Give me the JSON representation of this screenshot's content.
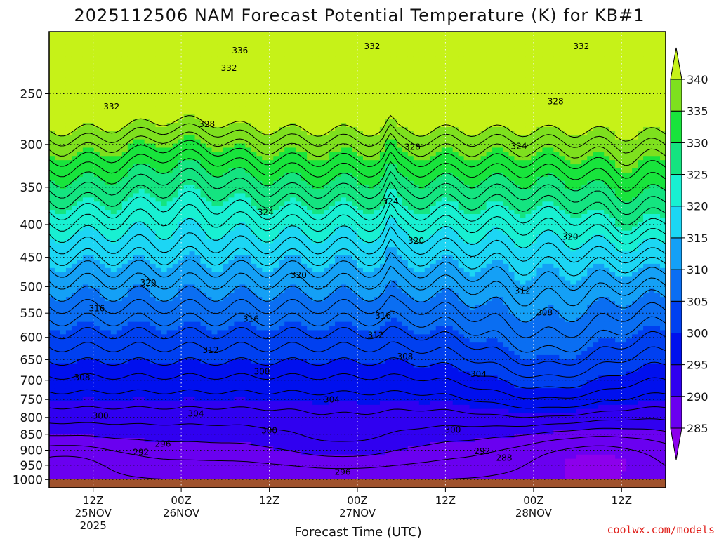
{
  "chart_data": {
    "type": "heatmap",
    "title": "2025112506 NAM Forecast Potential Temperature (K) for KB#1",
    "xlabel": "Forecast Time (UTC)",
    "ylabel": "",
    "credit": "coolwx.com/models",
    "y_axis": {
      "scale": "log",
      "inverted": true,
      "range": [
        1030,
        200
      ],
      "ticks": [
        250,
        300,
        350,
        400,
        450,
        500,
        550,
        600,
        650,
        700,
        750,
        800,
        850,
        900,
        950,
        1000
      ],
      "labels": [
        "250",
        "300",
        "350",
        "400",
        "450",
        "500",
        "550",
        "600",
        "650",
        "700",
        "750",
        "800",
        "850",
        "900",
        "950",
        "1000"
      ]
    },
    "x_axis": {
      "unit": "forecast hour",
      "range": [
        0,
        84
      ],
      "ticks": [
        {
          "hour": 6,
          "time": "12Z",
          "date": "25NOV",
          "year": "2025"
        },
        {
          "hour": 18,
          "time": "00Z",
          "date": "26NOV",
          "year": ""
        },
        {
          "hour": 30,
          "time": "12Z",
          "date": "",
          "year": ""
        },
        {
          "hour": 42,
          "time": "00Z",
          "date": "27NOV",
          "year": ""
        },
        {
          "hour": 54,
          "time": "12Z",
          "date": "",
          "year": ""
        },
        {
          "hour": 66,
          "time": "00Z",
          "date": "28NOV",
          "year": ""
        },
        {
          "hour": 78,
          "time": "12Z",
          "date": "",
          "year": ""
        }
      ]
    },
    "grid": true,
    "colorbar": {
      "placement": "right",
      "levels": [
        285,
        290,
        295,
        300,
        305,
        310,
        315,
        320,
        325,
        330,
        335,
        340
      ],
      "labels": [
        "285",
        "290",
        "295",
        "300",
        "305",
        "310",
        "315",
        "320",
        "325",
        "330",
        "335",
        "340"
      ],
      "colors": [
        "#8c00ec",
        "#6a00f0",
        "#3000f0",
        "#0010ee",
        "#0040f0",
        "#0a6ef2",
        "#14a0f6",
        "#1cd6f4",
        "#18f0d2",
        "#14e480",
        "#18e43c",
        "#7ee01e",
        "#c6f218"
      ]
    },
    "contour_labels": [
      {
        "hour": 26.0,
        "p": 214,
        "text": "336"
      },
      {
        "hour": 44.0,
        "p": 211,
        "text": "332"
      },
      {
        "hour": 72.5,
        "p": 211,
        "text": "332"
      },
      {
        "hour": 24.5,
        "p": 228,
        "text": "332"
      },
      {
        "hour": 8.5,
        "p": 262,
        "text": "332"
      },
      {
        "hour": 69.0,
        "p": 257,
        "text": "328"
      },
      {
        "hour": 21.5,
        "p": 279,
        "text": "328"
      },
      {
        "hour": 49.5,
        "p": 303,
        "text": "328"
      },
      {
        "hour": 64.0,
        "p": 302,
        "text": "324"
      },
      {
        "hour": 46.5,
        "p": 368,
        "text": "324"
      },
      {
        "hour": 29.5,
        "p": 383,
        "text": "324"
      },
      {
        "hour": 50.0,
        "p": 424,
        "text": "320"
      },
      {
        "hour": 71.0,
        "p": 418,
        "text": "320"
      },
      {
        "hour": 34.0,
        "p": 480,
        "text": "320"
      },
      {
        "hour": 13.5,
        "p": 493,
        "text": "320"
      },
      {
        "hour": 64.5,
        "p": 508,
        "text": "312"
      },
      {
        "hour": 6.5,
        "p": 541,
        "text": "316"
      },
      {
        "hour": 27.5,
        "p": 562,
        "text": "316"
      },
      {
        "hour": 45.5,
        "p": 555,
        "text": "316"
      },
      {
        "hour": 67.5,
        "p": 549,
        "text": "308"
      },
      {
        "hour": 44.5,
        "p": 595,
        "text": "312"
      },
      {
        "hour": 22.0,
        "p": 628,
        "text": "312"
      },
      {
        "hour": 48.5,
        "p": 643,
        "text": "308"
      },
      {
        "hour": 58.5,
        "p": 685,
        "text": "304"
      },
      {
        "hour": 29.0,
        "p": 679,
        "text": "308"
      },
      {
        "hour": 4.5,
        "p": 693,
        "text": "308"
      },
      {
        "hour": 38.5,
        "p": 751,
        "text": "304"
      },
      {
        "hour": 20.0,
        "p": 789,
        "text": "304"
      },
      {
        "hour": 7.0,
        "p": 795,
        "text": "300"
      },
      {
        "hour": 30.0,
        "p": 839,
        "text": "300"
      },
      {
        "hour": 55.0,
        "p": 837,
        "text": "300"
      },
      {
        "hour": 15.5,
        "p": 880,
        "text": "296"
      },
      {
        "hour": 12.5,
        "p": 907,
        "text": "292"
      },
      {
        "hour": 59.0,
        "p": 903,
        "text": "292"
      },
      {
        "hour": 62.0,
        "p": 925,
        "text": "288"
      },
      {
        "hour": 40.0,
        "p": 973,
        "text": "296"
      }
    ]
  }
}
